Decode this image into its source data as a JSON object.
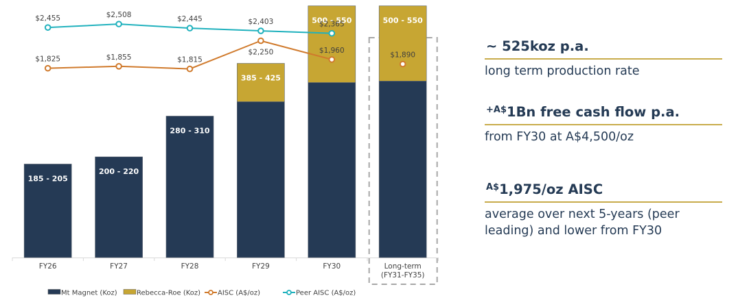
{
  "chart_data": {
    "type": "bar",
    "stacked": true,
    "title": "",
    "xlabel": "",
    "ylabel": "",
    "categories": [
      "FY26",
      "FY27",
      "FY28",
      "FY29",
      "FY30",
      "Long-term\n(FY31-FY35)"
    ],
    "category_lines": [
      [
        "FY26"
      ],
      [
        "FY27"
      ],
      [
        "FY28"
      ],
      [
        "FY29"
      ],
      [
        "FY30"
      ],
      [
        "Long-term",
        "(FY31-FY35)"
      ]
    ],
    "series": [
      {
        "name": "Mt Magnet (Koz)",
        "type": "bar",
        "color": "#253a55",
        "values": [
          195,
          210,
          295,
          325,
          365,
          368
        ],
        "labels": [
          "185 - 205",
          "200  - 220",
          "280 - 310",
          "",
          "",
          ""
        ]
      },
      {
        "name": "Rebecca-Roe (Koz)",
        "type": "bar",
        "color": "#c7a633",
        "values": [
          0,
          0,
          0,
          80,
          160,
          157
        ],
        "labels": [
          "",
          "",
          "",
          "385 - 425",
          "500 - 550",
          "500 - 550"
        ]
      },
      {
        "name": "AISC (A$/oz)",
        "type": "line",
        "color": "#d07a2c",
        "values": [
          1825,
          1855,
          1815,
          2250,
          1960,
          1890
        ],
        "labels": [
          "$1,825",
          "$1,855",
          "$1,815",
          "$2,250",
          "$1,960",
          "$1,890"
        ],
        "connected_through": 4
      },
      {
        "name": "Peer AISC (A$/oz)",
        "type": "line",
        "color": "#1fb1bd",
        "values": [
          2455,
          2508,
          2445,
          2403,
          2365,
          null
        ],
        "labels": [
          "$2,455",
          "$2,508",
          "$2,445",
          "$2,403",
          "$2,365",
          ""
        ]
      }
    ],
    "highlighted_category": "Long-term\n(FY31-FY35)",
    "grid": false,
    "legend": "bottom"
  },
  "stats": [
    {
      "prefix": "",
      "headline": "~ 525koz p.a.",
      "caption": "long term production rate"
    },
    {
      "prefix": "+A$",
      "headline": "1Bn free cash flow p.a.",
      "caption": "from FY30 at A$4,500/oz"
    },
    {
      "prefix": "A$",
      "headline": "1,975/oz AISC",
      "caption": "average over next 5-years (peer leading) and lower from FY30"
    }
  ]
}
